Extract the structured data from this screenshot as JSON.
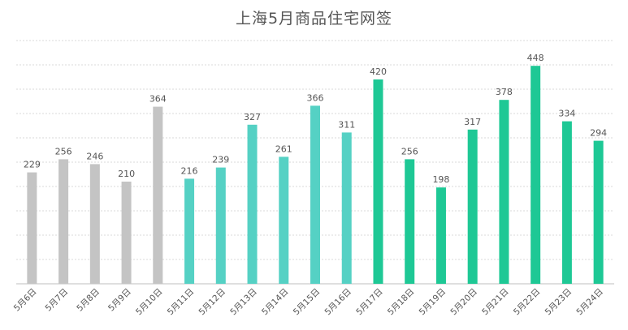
{
  "chart_data": {
    "type": "bar",
    "title": "上海5月商品住宅网签",
    "categories": [
      "5月6日",
      "5月7日",
      "5月8日",
      "5月9日",
      "5月10日",
      "5月11日",
      "5月12日",
      "5月13日",
      "5月14日",
      "5月15日",
      "5月16日",
      "5月17日",
      "5月18日",
      "5月19日",
      "5月20日",
      "5月21日",
      "5月22日",
      "5月23日",
      "5月24日"
    ],
    "values": [
      229,
      256,
      246,
      210,
      364,
      216,
      239,
      327,
      261,
      366,
      311,
      420,
      256,
      198,
      317,
      378,
      448,
      334,
      294
    ],
    "bar_colors": [
      "#c4c4c4",
      "#c4c4c4",
      "#c4c4c4",
      "#c4c4c4",
      "#c4c4c4",
      "#55d1c4",
      "#55d1c4",
      "#55d1c4",
      "#55d1c4",
      "#55d1c4",
      "#55d1c4",
      "#1ec895",
      "#1ec895",
      "#1ec895",
      "#1ec895",
      "#1ec895",
      "#1ec895",
      "#1ec895",
      "#1ec895"
    ],
    "xlabel": "",
    "ylabel": "",
    "ylim": [
      0,
      500
    ],
    "grid": true,
    "data_labels": true
  }
}
